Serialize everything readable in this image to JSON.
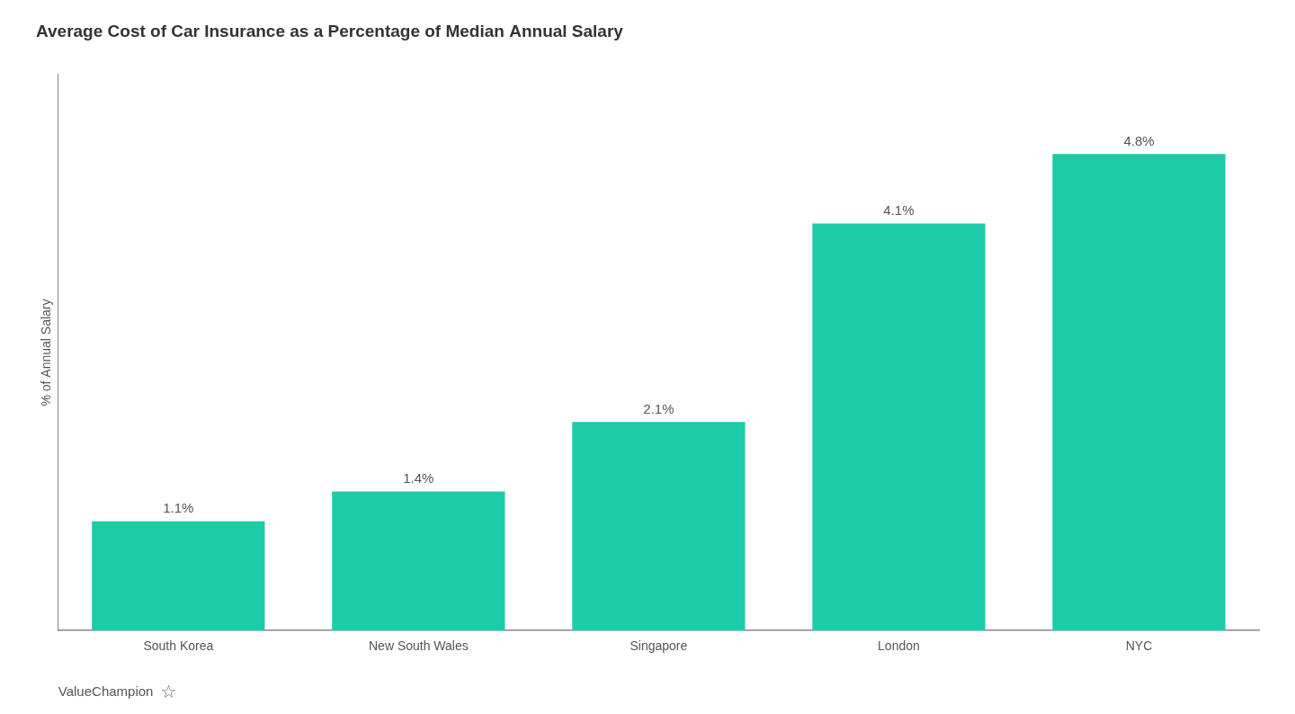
{
  "chart_data": {
    "type": "bar",
    "title": "Average Cost of Car Insurance as a Percentage of Median Annual Salary",
    "ylabel": "% of Annual Salary",
    "categories": [
      "South Korea",
      "New South Wales",
      "Singapore",
      "London",
      "NYC"
    ],
    "values": [
      1.1,
      1.4,
      2.1,
      4.1,
      4.8
    ],
    "value_labels": [
      "1.1%",
      "1.4%",
      "2.1%",
      "4.1%",
      "4.8%"
    ],
    "color": "#1ECBA8",
    "ylim": [
      0,
      5.6
    ],
    "grid": false,
    "data_labels": true,
    "tick_labels": "x",
    "annotations": [
      "ValueChampion",
      "☆"
    ]
  }
}
